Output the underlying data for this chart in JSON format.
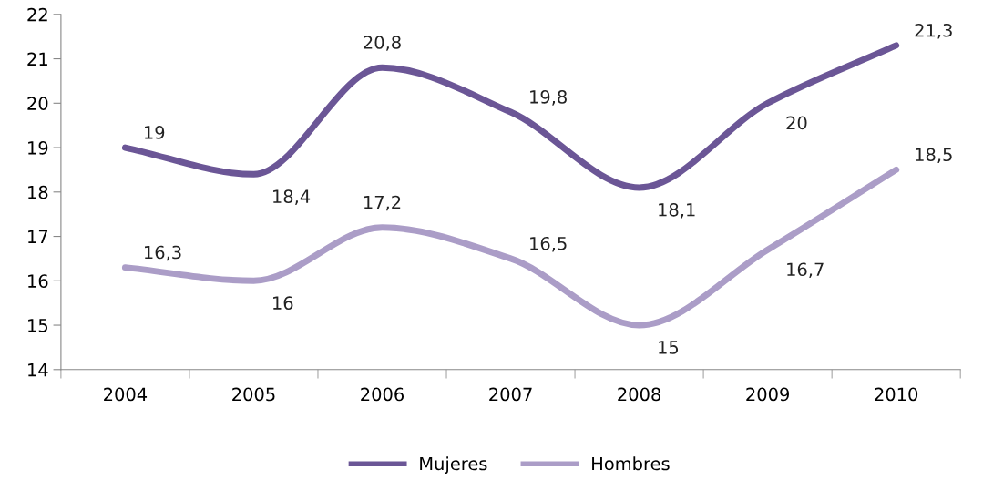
{
  "chart_data": {
    "type": "line",
    "categories": [
      "2004",
      "2005",
      "2006",
      "2007",
      "2008",
      "2009",
      "2010"
    ],
    "series": [
      {
        "name": "Mujeres",
        "color": "#6b5696",
        "values": [
          19,
          18.4,
          20.8,
          19.8,
          18.1,
          20,
          21.3
        ],
        "value_labels": [
          "19",
          "18,4",
          "20,8",
          "19,8",
          "18,1",
          "20",
          "21,3"
        ]
      },
      {
        "name": "Hombres",
        "color": "#ab9dc7",
        "values": [
          16.3,
          16,
          17.2,
          16.5,
          15,
          16.7,
          18.5
        ],
        "value_labels": [
          "16,3",
          "16",
          "17,2",
          "16,5",
          "15",
          "16,7",
          "18,5"
        ]
      }
    ],
    "ylim": [
      14,
      22
    ],
    "yticks": [
      14,
      15,
      16,
      17,
      18,
      19,
      20,
      21,
      22
    ],
    "legend": "bottom",
    "grid": false,
    "marker": "none",
    "line_style": "solid"
  }
}
